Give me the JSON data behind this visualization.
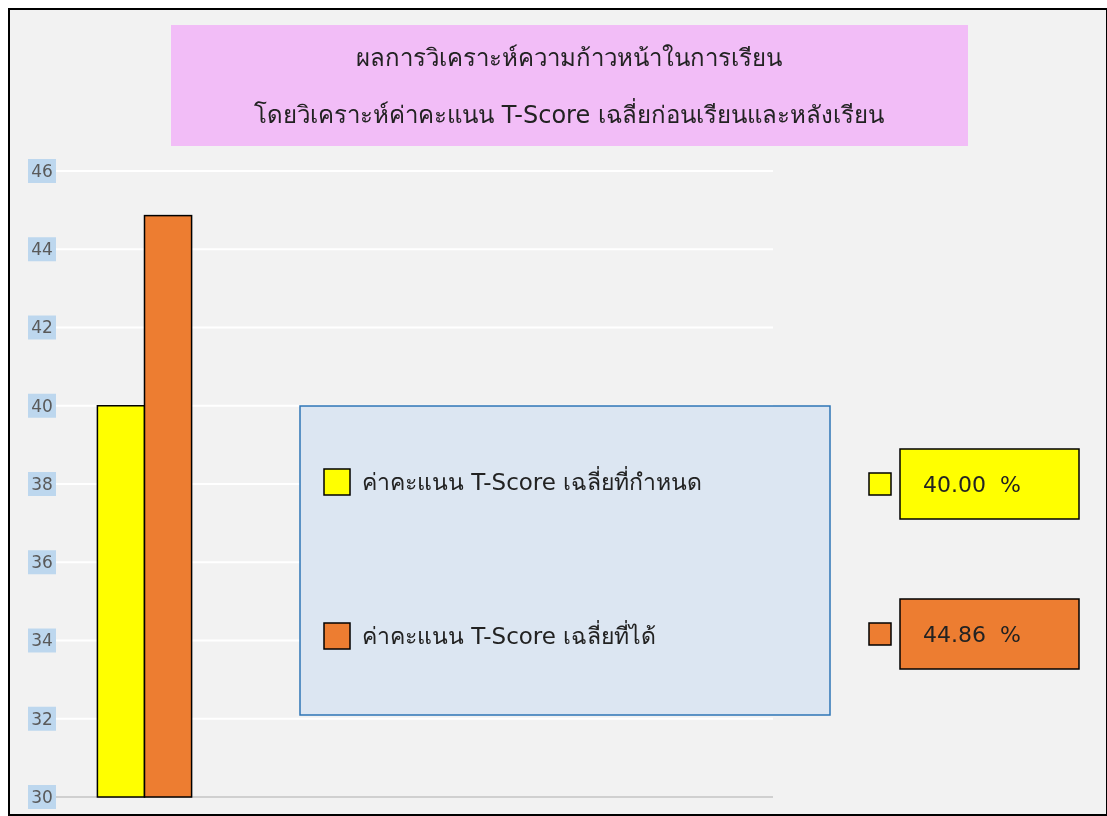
{
  "chart_data": {
    "type": "bar",
    "title": "ผลการวิเคราะห์ความก้าวหน้าในการเรียน",
    "subtitle": "โดยวิเคราะห์ค่าคะแนน  T-Score  เฉลี่ยก่อนเรียนและหลังเรียน",
    "categories": [
      null
    ],
    "series": [
      {
        "name": "ค่าคะแนน  T-Score  เฉลี่ยที่กำหนด",
        "color": "#ffff00",
        "values": [
          40
        ]
      },
      {
        "name": "ค่าคะแนน  T-Score  เฉลี่ยที่ได้",
        "color": "#ed7d31",
        "values": [
          44.86
        ]
      }
    ],
    "ylim": [
      30,
      46
    ],
    "yticks": [
      30,
      32,
      34,
      36,
      38,
      40,
      42,
      44,
      46
    ],
    "grid": "y",
    "legend": "right",
    "annotations": [
      "40.00  %",
      "44.86  %"
    ]
  }
}
